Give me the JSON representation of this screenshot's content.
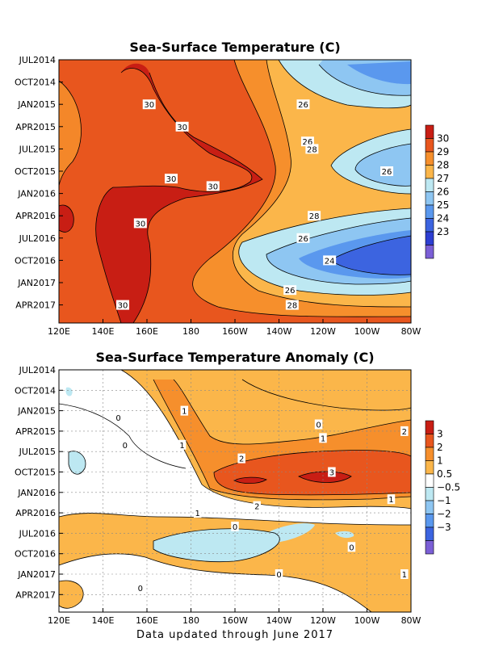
{
  "chart_data": [
    {
      "type": "heatmap",
      "title": "Sea-Surface Temperature (C)",
      "x_ticks": [
        "120E",
        "140E",
        "160E",
        "180",
        "160W",
        "140W",
        "120W",
        "100W",
        "80W"
      ],
      "y_ticks": [
        "JUL2014",
        "OCT2014",
        "JAN2015",
        "APR2015",
        "JUL2015",
        "OCT2015",
        "JAN2016",
        "APR2016",
        "JUL2016",
        "OCT2016",
        "JAN2017",
        "APR2017"
      ],
      "colorbar": {
        "labels": [
          "30",
          "29",
          "28",
          "27",
          "26",
          "25",
          "24",
          "23"
        ],
        "colors": [
          "#c81e14",
          "#e8561e",
          "#f68f2c",
          "#fbb64a",
          "#bde8f2",
          "#8ec6f2",
          "#5a98ee",
          "#3c64e0",
          "#2d3ed2",
          "#7b5fd6"
        ]
      },
      "contour_labels": [
        {
          "text": "30",
          "lon": 161,
          "date": "2015-01"
        },
        {
          "text": "30",
          "lon": 176,
          "date": "2015-04"
        },
        {
          "text": "30",
          "lon": 171,
          "date": "2015-11"
        },
        {
          "text": "30",
          "lon": -170,
          "date": "2015-12"
        },
        {
          "text": "30",
          "lon": 157,
          "date": "2016-05"
        },
        {
          "text": "30",
          "lon": 149,
          "date": "2017-04"
        },
        {
          "text": "26",
          "lon": -129,
          "date": "2015-01"
        },
        {
          "text": "26",
          "lon": -127,
          "date": "2015-06"
        },
        {
          "text": "28",
          "lon": -125,
          "date": "2015-07"
        },
        {
          "text": "26",
          "lon": -91,
          "date": "2015-10"
        },
        {
          "text": "28",
          "lon": -124,
          "date": "2016-04"
        },
        {
          "text": "26",
          "lon": -129,
          "date": "2016-07"
        },
        {
          "text": "24",
          "lon": -117,
          "date": "2016-10"
        },
        {
          "text": "26",
          "lon": -135,
          "date": "2017-02"
        },
        {
          "text": "28",
          "lon": -134,
          "date": "2017-04"
        }
      ]
    },
    {
      "type": "heatmap",
      "title": "Sea-Surface Temperature Anomaly (C)",
      "x_ticks": [
        "120E",
        "140E",
        "160E",
        "180",
        "160W",
        "140W",
        "120W",
        "100W",
        "80W"
      ],
      "y_ticks": [
        "JUL2014",
        "OCT2014",
        "JAN2015",
        "APR2015",
        "JUL2015",
        "OCT2015",
        "JAN2016",
        "APR2016",
        "JUL2016",
        "OCT2016",
        "JAN2017",
        "APR2017"
      ],
      "colorbar": {
        "labels": [
          "3",
          "2",
          "1",
          "0.5",
          "−0.5",
          "−1",
          "−2",
          "−3"
        ],
        "colors": [
          "#c81e14",
          "#e8561e",
          "#f68f2c",
          "#fbb64a",
          "#ffffff",
          "#bde8f2",
          "#8ec6f2",
          "#5a98ee",
          "#3c64e0",
          "#7b5fd6"
        ]
      },
      "contour_labels": [
        {
          "text": "1",
          "lon": 177,
          "date": "2015-01"
        },
        {
          "text": "0",
          "lon": 147,
          "date": "2015-02"
        },
        {
          "text": "0",
          "lon": -122,
          "date": "2015-03"
        },
        {
          "text": "1",
          "lon": -120,
          "date": "2015-05"
        },
        {
          "text": "2",
          "lon": -83,
          "date": "2015-04"
        },
        {
          "text": "0",
          "lon": 150,
          "date": "2015-06"
        },
        {
          "text": "1",
          "lon": 176,
          "date": "2015-06"
        },
        {
          "text": "2",
          "lon": -157,
          "date": "2015-08"
        },
        {
          "text": "3",
          "lon": -116,
          "date": "2015-10"
        },
        {
          "text": "1",
          "lon": -89,
          "date": "2016-02"
        },
        {
          "text": "2",
          "lon": -150,
          "date": "2016-03"
        },
        {
          "text": "1",
          "lon": -177,
          "date": "2016-04"
        },
        {
          "text": "0",
          "lon": -160,
          "date": "2016-06"
        },
        {
          "text": "0",
          "lon": -107,
          "date": "2016-09"
        },
        {
          "text": "1",
          "lon": -83,
          "date": "2017-01"
        },
        {
          "text": "0",
          "lon": -140,
          "date": "2017-01"
        },
        {
          "text": "0",
          "lon": 157,
          "date": "2017-03"
        }
      ]
    }
  ],
  "footer": "Data updated through June 2017"
}
